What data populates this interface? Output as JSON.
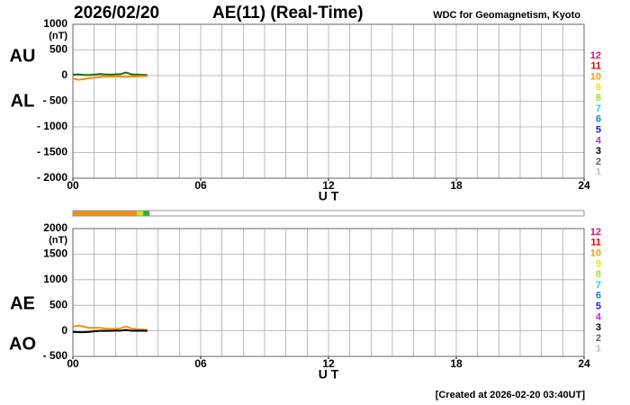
{
  "header": {
    "date": "2026/02/20",
    "title": "AE(11) (Real-Time)",
    "source": "WDC for Geomagnetism, Kyoto"
  },
  "footer": "[Created at 2026-02-20 03:40UT]",
  "chart_data": [
    {
      "type": "line",
      "y_unit": "(nT)",
      "x_label": "U T",
      "xlim": [
        0,
        24
      ],
      "xticks": [
        {
          "value": 0,
          "label": "00"
        },
        {
          "value": 6,
          "label": "06"
        },
        12,
        18,
        24
      ],
      "ylim": [
        -2000,
        1000
      ],
      "yticks": [
        1000,
        500,
        0,
        {
          "value": -500,
          "label": "- 500"
        },
        {
          "value": -1000,
          "label": "- 1000"
        },
        {
          "value": -1500,
          "label": "- 1500"
        },
        {
          "value": -2000,
          "label": "- 2000"
        }
      ],
      "grid": true,
      "x": [
        0,
        0.25,
        0.5,
        0.75,
        1,
        1.25,
        1.5,
        1.75,
        2,
        2.25,
        2.5,
        2.75,
        3,
        3.25,
        3.5
      ],
      "series": [
        {
          "name": "AU",
          "color": "#2a6a10",
          "values": [
            20,
            25,
            15,
            10,
            20,
            30,
            25,
            20,
            25,
            30,
            60,
            25,
            20,
            15,
            10
          ]
        },
        {
          "name": "AL",
          "color": "#f09010",
          "values": [
            -60,
            -80,
            -70,
            -50,
            -40,
            -30,
            -20,
            -20,
            -15,
            -20,
            -25,
            -20,
            -15,
            -10,
            -10
          ]
        }
      ]
    },
    {
      "type": "line",
      "y_unit": "(nT)",
      "x_label": "U T",
      "xlim": [
        0,
        24
      ],
      "xticks": [
        {
          "value": 0,
          "label": "00"
        },
        {
          "value": 6,
          "label": "06"
        },
        12,
        18,
        24
      ],
      "ylim": [
        -500,
        2000
      ],
      "yticks": [
        2000,
        1500,
        1000,
        500,
        0,
        {
          "value": -500,
          "label": "- 500"
        }
      ],
      "grid": true,
      "x": [
        0,
        0.25,
        0.5,
        0.75,
        1,
        1.25,
        1.5,
        1.75,
        2,
        2.25,
        2.5,
        2.75,
        3,
        3.25,
        3.5
      ],
      "series": [
        {
          "name": "AE",
          "color": "#f09010",
          "values": [
            80,
            105,
            85,
            60,
            60,
            60,
            45,
            40,
            40,
            50,
            85,
            45,
            35,
            25,
            20
          ]
        },
        {
          "name": "AO",
          "color": "#000000",
          "values": [
            -20,
            -27.5,
            -27.5,
            -20,
            -10,
            0,
            2.5,
            0,
            5,
            5,
            17.5,
            2.5,
            2.5,
            2.5,
            0
          ]
        }
      ]
    }
  ],
  "status_bar": [
    {
      "start": 0,
      "end": 3,
      "color": "#f09010"
    },
    {
      "start": 3,
      "end": 3.3,
      "color": "#c8e820"
    },
    {
      "start": 3.3,
      "end": 3.6,
      "color": "#30b030"
    }
  ],
  "levels": [
    12,
    11,
    10,
    9,
    8,
    7,
    6,
    5,
    4,
    3,
    2,
    1
  ],
  "level_colors": [
    "#e0106a",
    "#e00000",
    "#f0a000",
    "#e8e800",
    "#a0e020",
    "#20d0e0",
    "#1080e0",
    "#2020c0",
    "#c020e0",
    "#000000",
    "#606060",
    "#c0c0c0"
  ]
}
